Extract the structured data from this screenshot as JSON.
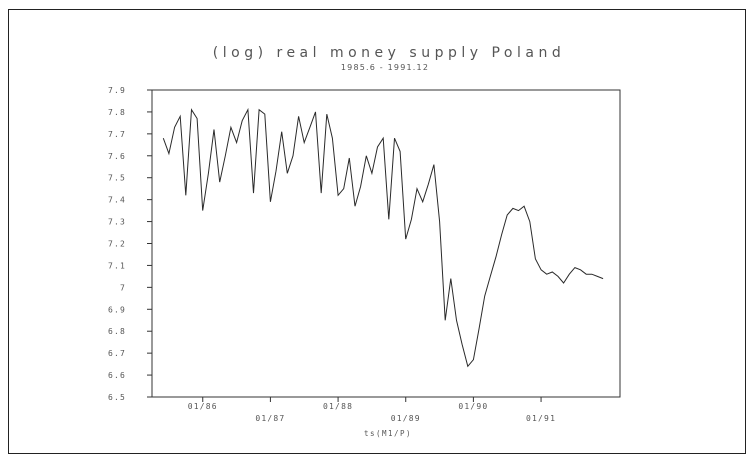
{
  "chart_data": {
    "type": "line",
    "title": "(log) real money supply Poland",
    "subtitle": "1985.6 - 1991.12",
    "xlabel": "ts(M1/P)",
    "ylabel": "",
    "ylim": [
      6.5,
      7.9
    ],
    "yticks": [
      6.5,
      6.6,
      6.7,
      6.8,
      6.9,
      7,
      7.1,
      7.2,
      7.3,
      7.4,
      7.5,
      7.6,
      7.7,
      7.8,
      7.9
    ],
    "ytick_labels": [
      "6.5",
      "6.6",
      "6.7",
      "6.8",
      "6.9",
      "7",
      "7.1",
      "7.2",
      "7.3",
      "7.4",
      "7.5",
      "7.6",
      "7.7",
      "7.8",
      "7.9"
    ],
    "xlim": [
      "1985-04",
      "1992-03"
    ],
    "xticks": [
      "1986-01",
      "1987-01",
      "1988-01",
      "1989-01",
      "1990-01",
      "1991-01"
    ],
    "xtick_labels": [
      "01/86",
      "01/87",
      "01/88",
      "01/89",
      "01/90",
      "01/91"
    ],
    "grid": false,
    "series": [
      {
        "x": [
          "1985-06",
          "1985-07",
          "1985-08",
          "1985-09",
          "1985-10",
          "1985-11",
          "1985-12",
          "1986-01",
          "1986-02",
          "1986-03",
          "1986-04",
          "1986-05",
          "1986-06",
          "1986-07",
          "1986-08",
          "1986-09",
          "1986-10",
          "1986-11",
          "1986-12",
          "1987-01",
          "1987-02",
          "1987-03",
          "1987-04",
          "1987-05",
          "1987-06",
          "1987-07",
          "1987-08",
          "1987-09",
          "1987-10",
          "1987-11",
          "1987-12",
          "1988-01",
          "1988-02",
          "1988-03",
          "1988-04",
          "1988-05",
          "1988-06",
          "1988-07",
          "1988-08",
          "1988-09",
          "1988-10",
          "1988-11",
          "1988-12",
          "1989-01",
          "1989-02",
          "1989-03",
          "1989-04",
          "1989-05",
          "1989-06",
          "1989-07",
          "1989-08",
          "1989-09",
          "1989-10",
          "1989-11",
          "1989-12",
          "1990-01",
          "1990-02",
          "1990-03",
          "1990-04",
          "1990-05",
          "1990-06",
          "1990-07",
          "1990-08",
          "1990-09",
          "1990-10",
          "1990-11",
          "1990-12",
          "1991-01",
          "1991-02",
          "1991-03",
          "1991-04",
          "1991-05",
          "1991-06",
          "1991-07",
          "1991-08",
          "1991-09",
          "1991-10",
          "1991-11",
          "1991-12"
        ],
        "y": [
          7.68,
          7.61,
          7.73,
          7.78,
          7.42,
          7.81,
          7.77,
          7.35,
          7.52,
          7.72,
          7.48,
          7.6,
          7.73,
          7.66,
          7.76,
          7.81,
          7.43,
          7.81,
          7.79,
          7.39,
          7.53,
          7.71,
          7.52,
          7.6,
          7.78,
          7.66,
          7.73,
          7.8,
          7.43,
          7.79,
          7.68,
          7.42,
          7.45,
          7.59,
          7.37,
          7.46,
          7.6,
          7.52,
          7.64,
          7.68,
          7.31,
          7.68,
          7.62,
          7.22,
          7.31,
          7.45,
          7.39,
          7.47,
          7.56,
          7.3,
          6.85,
          7.04,
          6.85,
          6.74,
          6.64,
          6.67,
          6.81,
          6.96,
          7.05,
          7.14,
          7.24,
          7.33,
          7.36,
          7.35,
          7.37,
          7.3,
          7.13,
          7.08,
          7.06,
          7.07,
          7.05,
          7.02,
          7.06,
          7.09,
          7.08,
          7.06,
          7.06,
          7.05,
          7.04
        ]
      }
    ]
  }
}
